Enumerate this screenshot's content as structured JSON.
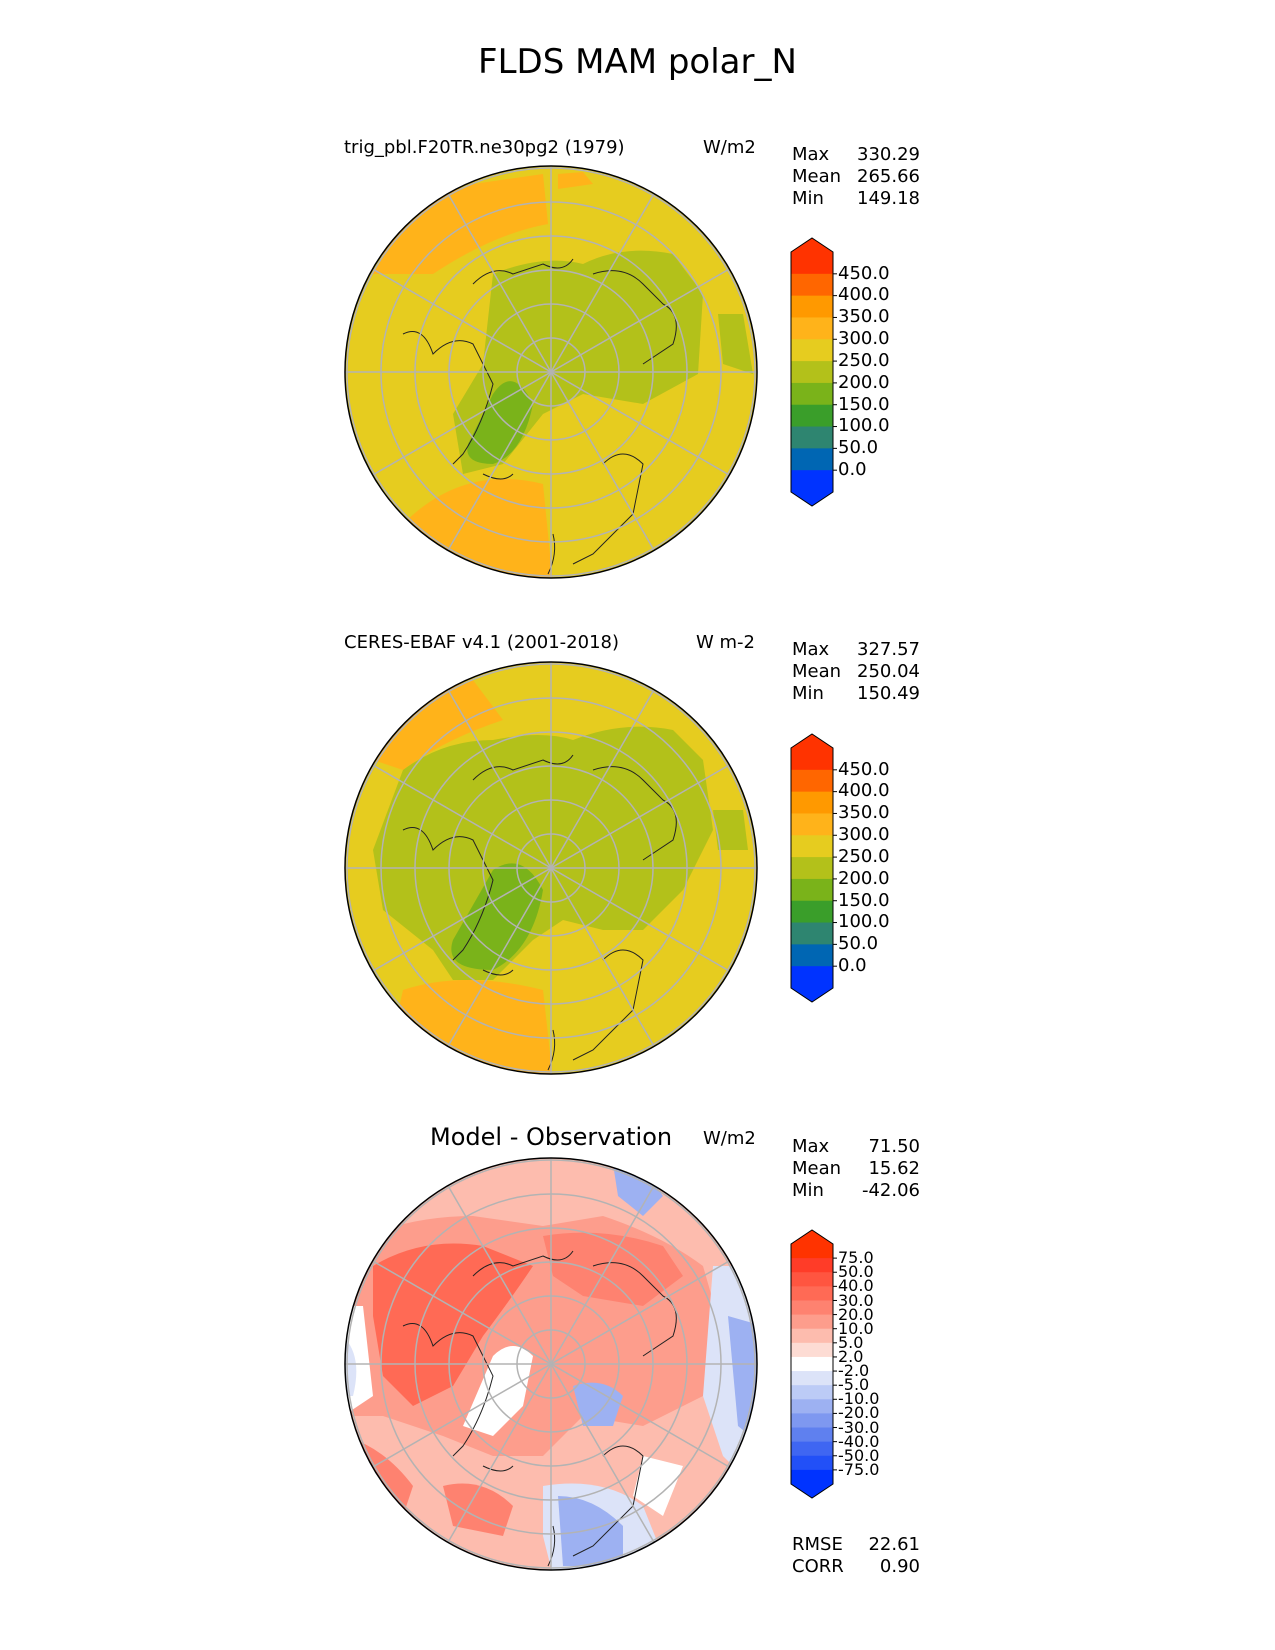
{
  "title": "FLDS MAM polar_N",
  "panels": [
    {
      "id": "model",
      "left_label": "trig_pbl.F20TR.ne30pg2 (1979)",
      "unit": "W/m2",
      "stats": [
        {
          "label": "Max",
          "value": "330.29"
        },
        {
          "label": "Mean",
          "value": "265.66"
        },
        {
          "label": "Min",
          "value": "149.18"
        }
      ],
      "colorbar": {
        "ticks": [
          "450.0",
          "400.0",
          "350.0",
          "300.0",
          "250.0",
          "200.0",
          "150.0",
          "100.0",
          "50.0",
          "0.0"
        ],
        "colors_top_to_bottom": [
          "#ff3300",
          "#ff6600",
          "#ff9900",
          "#ffb31a",
          "#e6cc1f",
          "#b3c11a",
          "#7ab31a",
          "#3a9e2a",
          "#2e8570",
          "#0066b3",
          "#0033ff"
        ],
        "extend_top": "#ff3300",
        "extend_bottom": "#0033ff"
      }
    },
    {
      "id": "obs",
      "left_label": "CERES-EBAF v4.1 (2001-2018)",
      "unit": "W m-2",
      "stats": [
        {
          "label": "Max",
          "value": "327.57"
        },
        {
          "label": "Mean",
          "value": "250.04"
        },
        {
          "label": "Min",
          "value": "150.49"
        }
      ],
      "colorbar": {
        "ticks": [
          "450.0",
          "400.0",
          "350.0",
          "300.0",
          "250.0",
          "200.0",
          "150.0",
          "100.0",
          "50.0",
          "0.0"
        ],
        "colors_top_to_bottom": [
          "#ff3300",
          "#ff6600",
          "#ff9900",
          "#ffb31a",
          "#e6cc1f",
          "#b3c11a",
          "#7ab31a",
          "#3a9e2a",
          "#2e8570",
          "#0066b3",
          "#0033ff"
        ],
        "extend_top": "#ff3300",
        "extend_bottom": "#0033ff"
      }
    },
    {
      "id": "diff",
      "center_label": "Model - Observation",
      "unit": "W/m2",
      "stats": [
        {
          "label": "Max",
          "value": "71.50"
        },
        {
          "label": "Mean",
          "value": "15.62"
        },
        {
          "label": "Min",
          "value": "-42.06"
        }
      ],
      "metrics": [
        {
          "label": "RMSE",
          "value": "22.61"
        },
        {
          "label": "CORR",
          "value": "0.90"
        }
      ],
      "colorbar": {
        "ticks": [
          "75.0",
          "50.0",
          "40.0",
          "30.0",
          "20.0",
          "10.0",
          "5.0",
          "2.0",
          "-2.0",
          "-5.0",
          "-10.0",
          "-20.0",
          "-30.0",
          "-40.0",
          "-50.0",
          "-75.0"
        ],
        "colors_top_to_bottom": [
          "#ff3300",
          "#ff3c28",
          "#ff5540",
          "#ff6a55",
          "#fe8270",
          "#fd9d8c",
          "#fdbcae",
          "#fddcd4",
          "#ffffff",
          "#dce3f8",
          "#bccbf6",
          "#9db1f2",
          "#7e98f0",
          "#5f80ef",
          "#3f66f2",
          "#2250f7",
          "#0033ff"
        ],
        "extend_top": "#ff3300",
        "extend_bottom": "#0033ff"
      }
    }
  ]
}
